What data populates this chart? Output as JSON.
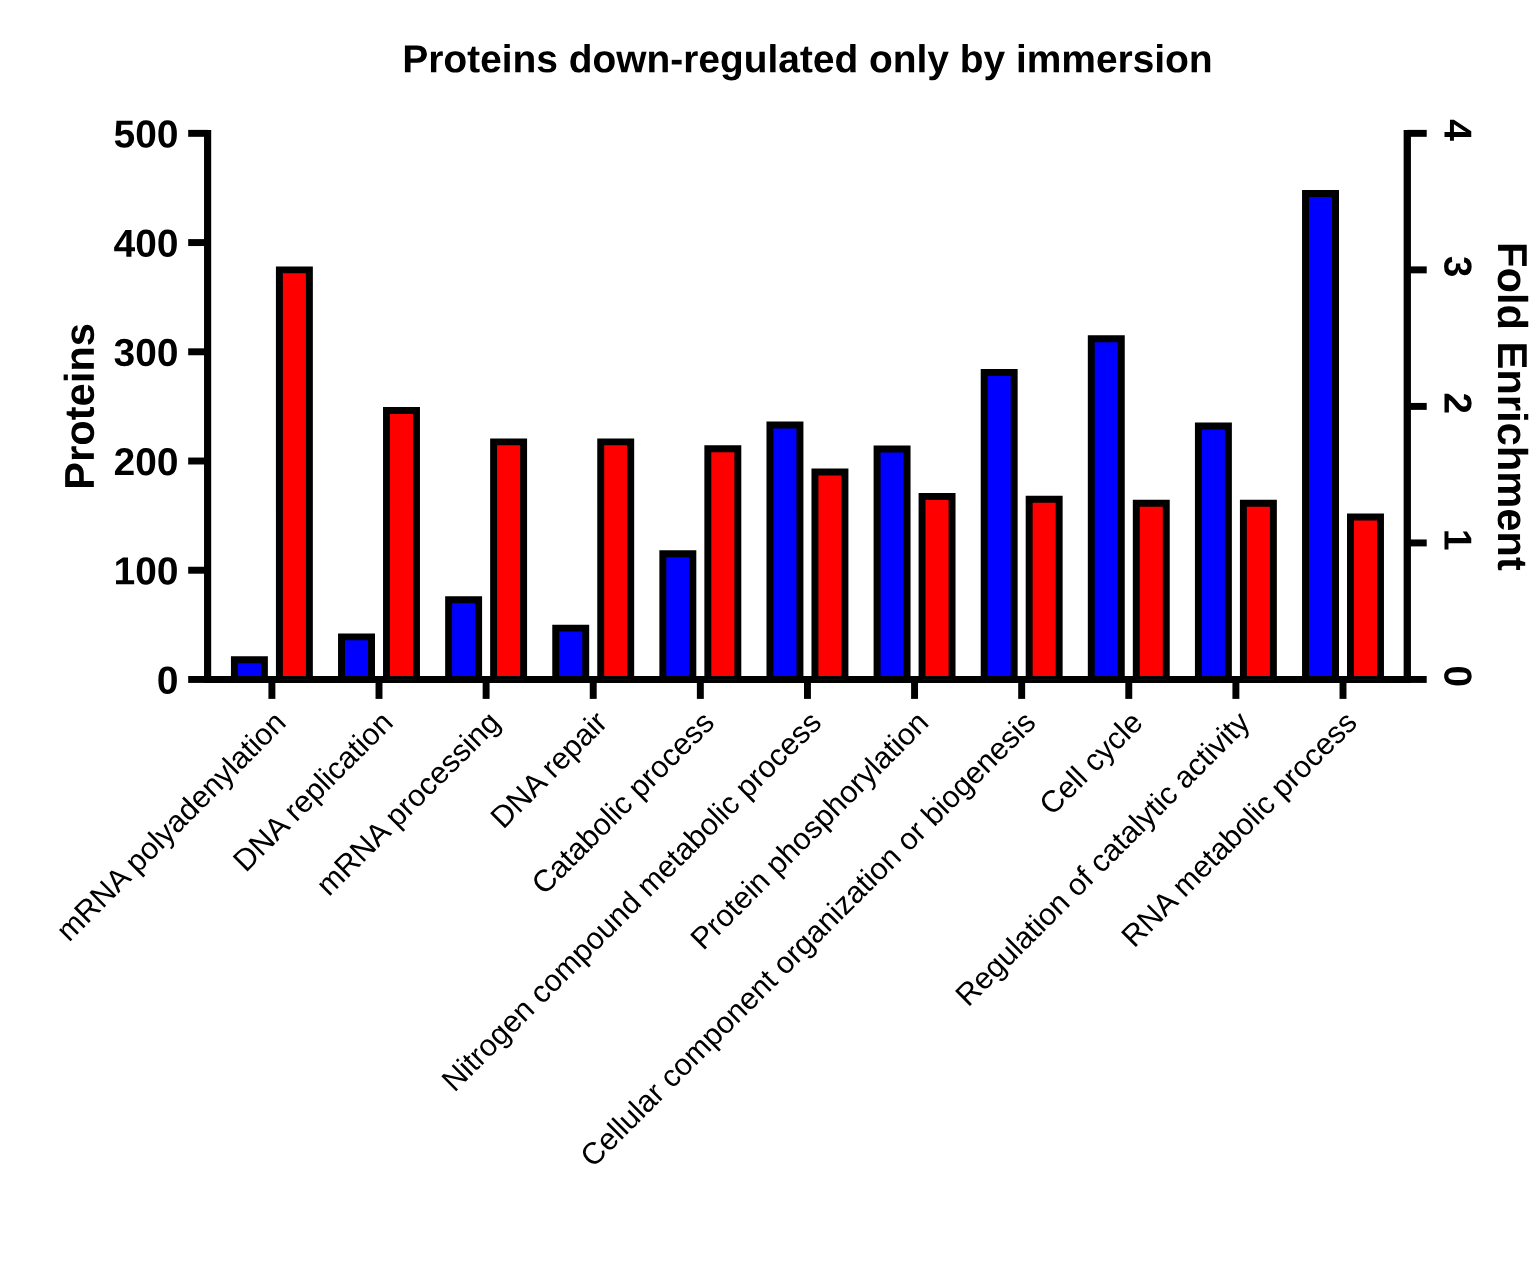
{
  "chart_data": {
    "type": "bar",
    "title": "Proteins down-regulated only by immersion",
    "ylabel": "Proteins",
    "y2label": "Fold Enrichment",
    "categories": [
      "mRNA polyadenylation",
      "DNA replication",
      "mRNA processing",
      "DNA repair",
      "Catabolic process",
      "Nitrogen compound metabolic process",
      "Protein phosphorylation",
      "Cellular component organization or biogenesis",
      "Cell cycle",
      "Regulation of catalytic activity",
      "RNA metabolic process"
    ],
    "series": [
      {
        "color": "#0000ff",
        "values": [
          18,
          39,
          73,
          47,
          115,
          233,
          211,
          281,
          312,
          232,
          445
        ]
      },
      {
        "color": "#ff0000",
        "axis": "y2",
        "values": [
          3.0,
          1.97,
          1.74,
          1.74,
          1.69,
          1.52,
          1.34,
          1.32,
          1.29,
          1.29,
          1.19
        ]
      }
    ],
    "ylim": [
      0,
      500
    ],
    "yticks": [
      0,
      100,
      200,
      300,
      400,
      500
    ],
    "y2lim": [
      0,
      4
    ],
    "y2ticks": [
      0,
      1,
      2,
      3,
      4
    ],
    "grid": false,
    "legend": false
  }
}
